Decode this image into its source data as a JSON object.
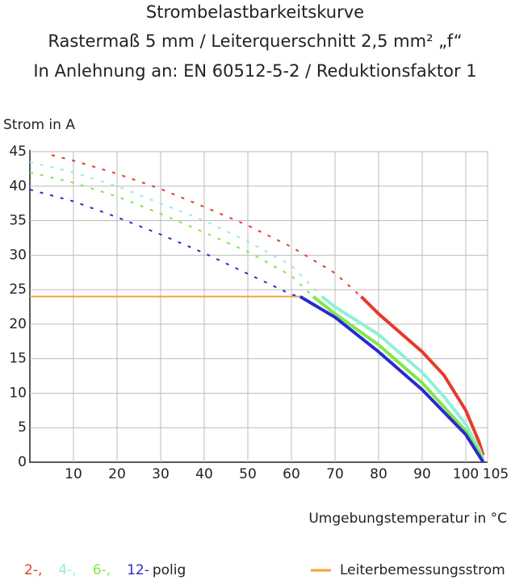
{
  "chart_data": {
    "type": "line",
    "title": [
      "Strombelastbarkeitskurve",
      "Rastermaß 5 mm / Leiterquerschnitt 2,5 mm² „f“",
      "In Anlehnung an: EN 60512-5-2 / Reduktionsfaktor 1"
    ],
    "y_label": "Strom in A",
    "x_label": "Umgebungstemperatur in °C",
    "xlim": [
      0,
      105
    ],
    "ylim": [
      0,
      45
    ],
    "xticks": [
      10,
      20,
      30,
      40,
      50,
      60,
      70,
      80,
      90,
      100,
      105
    ],
    "yticks": [
      0,
      5,
      10,
      15,
      20,
      25,
      30,
      35,
      40,
      45
    ],
    "grid": true,
    "legend_suffix": "polig",
    "rated_current": {
      "name": "Leiterbemessungsstrom",
      "value": 24,
      "color": "#f7a13a"
    },
    "series": [
      {
        "name": "2-,",
        "color": "#e8392a",
        "x": [
          5,
          10,
          20,
          30,
          40,
          50,
          60,
          70,
          76,
          80,
          90,
          95,
          100,
          103,
          104
        ],
        "values": [
          44.5,
          43.7,
          41.8,
          39.6,
          37.0,
          34.3,
          31.2,
          27.4,
          24,
          21.5,
          16.0,
          12.6,
          7.5,
          3,
          1
        ]
      },
      {
        "name": "4-,",
        "color": "#8ff0d8",
        "x": [
          0,
          10,
          20,
          30,
          40,
          50,
          60,
          67,
          70,
          80,
          90,
          95,
          100,
          103,
          104
        ],
        "values": [
          43.5,
          42,
          40,
          37.5,
          35,
          32,
          28.5,
          24,
          22.5,
          18.5,
          13,
          9.5,
          5.5,
          2,
          0.5
        ]
      },
      {
        "name": "6-,",
        "color": "#7ee84a",
        "x": [
          0,
          10,
          20,
          30,
          40,
          50,
          60,
          65,
          70,
          80,
          90,
          100,
          103,
          104
        ],
        "values": [
          42,
          40.5,
          38.5,
          36,
          33.3,
          30.5,
          27,
          24,
          21.5,
          17,
          11.5,
          4.5,
          1.5,
          0
        ]
      },
      {
        "name": "12-",
        "color": "#2a2ad0",
        "x": [
          0,
          10,
          20,
          30,
          40,
          50,
          60,
          62,
          70,
          80,
          90,
          100,
          103,
          104
        ],
        "values": [
          39.5,
          37.8,
          35.5,
          33,
          30.3,
          27.3,
          24.3,
          24,
          21,
          16,
          10.5,
          4,
          1,
          0
        ]
      }
    ]
  }
}
